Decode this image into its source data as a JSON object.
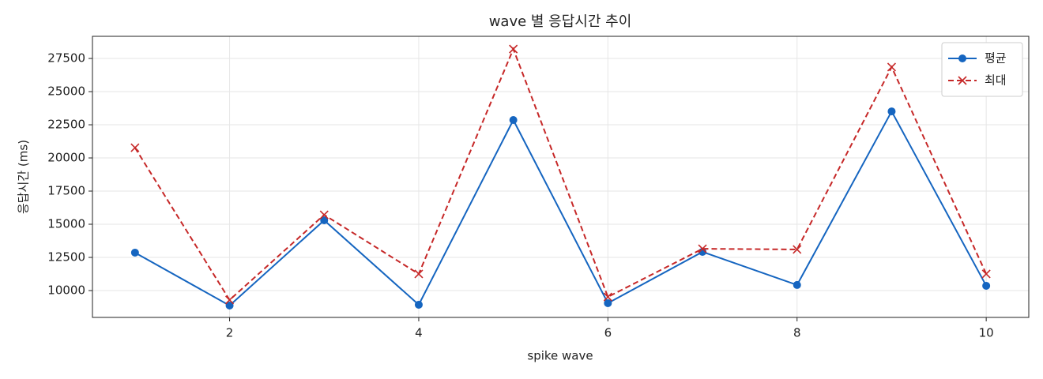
{
  "chart_data": {
    "type": "line",
    "title": "wave 별 응답시간 추이",
    "x_label": "spike wave",
    "y_label": "응답시간 (ms)",
    "x": [
      1,
      2,
      3,
      4,
      5,
      6,
      7,
      8,
      9,
      10
    ],
    "series": [
      {
        "name": "평균",
        "color": "#1565c0",
        "marker": "o",
        "linestyle": "solid",
        "values": [
          12860,
          8870,
          15300,
          8930,
          22860,
          9050,
          12920,
          10420,
          23510,
          10360
        ]
      },
      {
        "name": "최대",
        "color": "#c62828",
        "marker": "x",
        "linestyle": "dashed",
        "values": [
          20770,
          9290,
          15710,
          11250,
          28210,
          9520,
          13150,
          13100,
          26850,
          11250
        ]
      }
    ],
    "xlim": [
      0.55,
      10.45
    ],
    "xticks": [
      2,
      4,
      6,
      8,
      10
    ],
    "ylim": [
      7975,
      29170
    ],
    "yticks": [
      10000,
      12500,
      15000,
      17500,
      20000,
      22500,
      25000,
      27500
    ],
    "grid": true,
    "legend": "upper right"
  }
}
